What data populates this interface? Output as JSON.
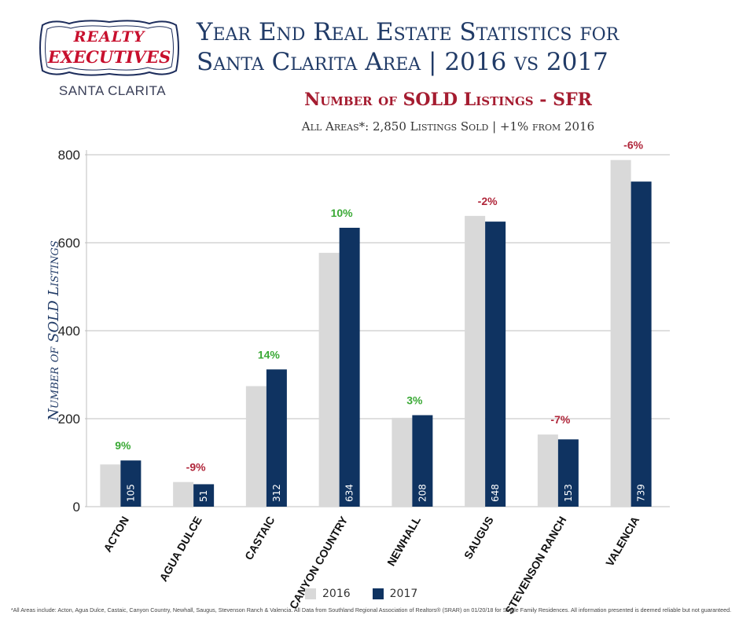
{
  "brand": {
    "name_line1": "REALTY",
    "name_line2": "EXECUTIVES",
    "location": "SANTA CLARITA",
    "colors": {
      "red": "#c8102e",
      "navy": "#1d2d5c"
    }
  },
  "header": {
    "title_line1": "Year End Real Estate Statistics for",
    "title_line2": "Santa Clarita Area | 2016 vs 2017",
    "subtitle": "Number of SOLD Listings - SFR",
    "summary": "All Areas*:  2,850 Listings Sold | +1% from 2016"
  },
  "legend": {
    "series_2016": "2016",
    "series_2017": "2017"
  },
  "footnote": "*All Areas include: Acton, Agua Dulce, Castaic, Canyon Country, Newhall, Saugus, Stevenson Ranch & Valencia. All Data from Southland Regional Association of Realtors® (SRAR) on 01/20/18 for Single Family Residences. All information presented is deemed reliable but not guaranteed.",
  "chart_data": {
    "type": "bar",
    "title": "Number of SOLD Listings - SFR",
    "xlabel": "",
    "ylabel": "Number of SOLD Listings",
    "ylim": [
      0,
      800
    ],
    "yticks": [
      0,
      200,
      400,
      600,
      800
    ],
    "grid": true,
    "legend_position": "bottom",
    "categories": [
      "ACTON",
      "AGUA DULCE",
      "CASTAIC",
      "CANYON COUNTRY",
      "NEWHALL",
      "SAUGUS",
      "STEVENSON RANCH",
      "VALENCIA"
    ],
    "series": [
      {
        "name": "2016",
        "color": "#d9d9d9",
        "values": [
          96,
          56,
          274,
          577,
          202,
          661,
          164,
          788
        ]
      },
      {
        "name": "2017",
        "color": "#0f3361",
        "values": [
          105,
          51,
          312,
          634,
          208,
          648,
          153,
          739
        ]
      }
    ],
    "value_labels_2017": [
      "105",
      "51",
      "312",
      "634",
      "208",
      "648",
      "153",
      "739"
    ],
    "change_labels": [
      "9%",
      "-9%",
      "14%",
      "10%",
      "3%",
      "-2%",
      "-7%",
      "-6%"
    ],
    "change_colors": {
      "positive": "#3aa935",
      "negative": "#b0263a"
    }
  }
}
